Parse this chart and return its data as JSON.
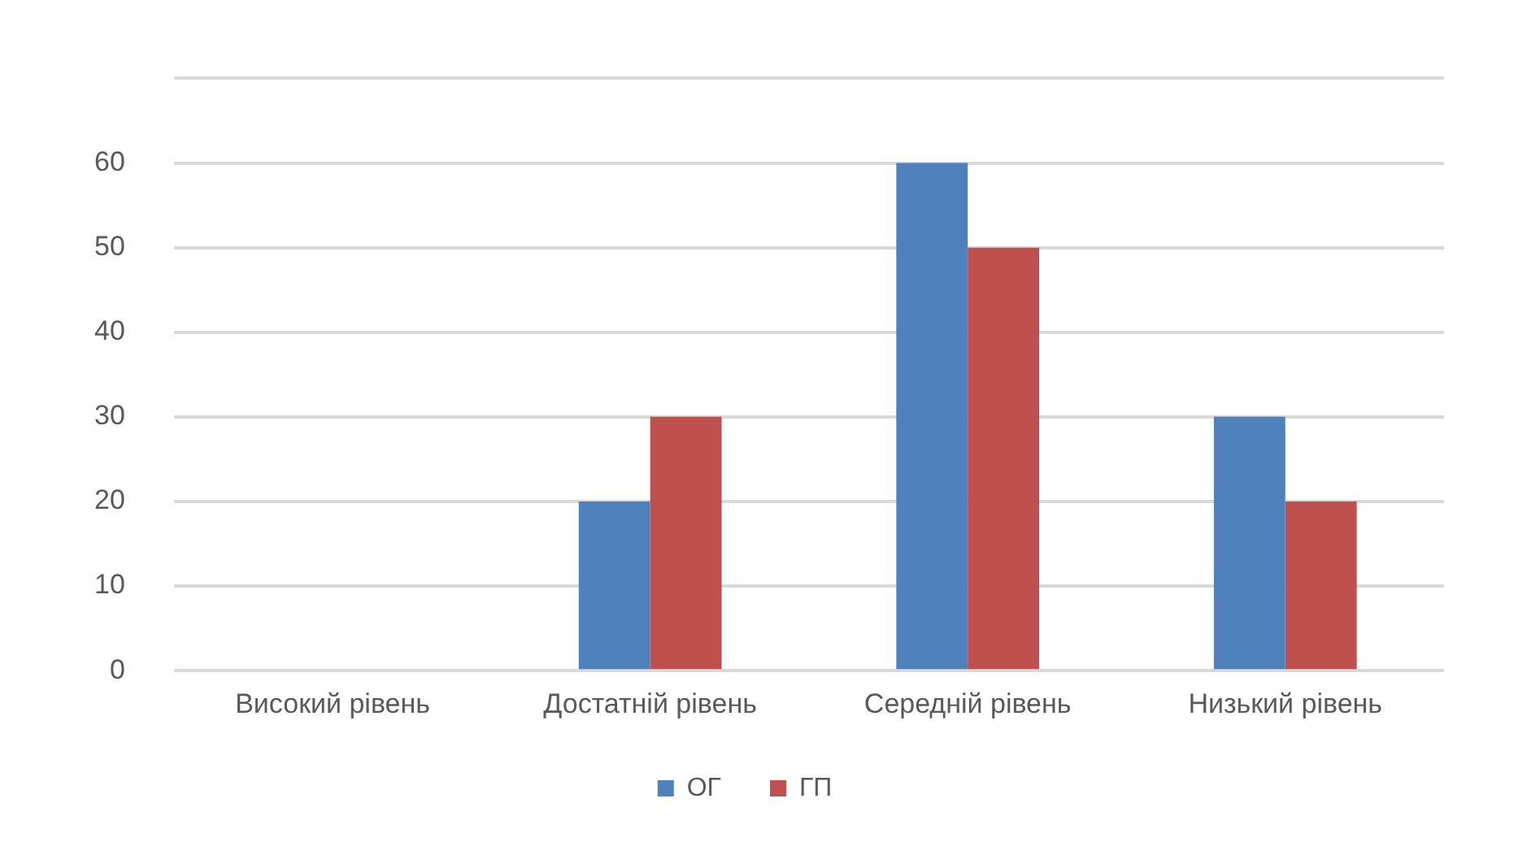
{
  "chart_data": {
    "type": "bar",
    "categories": [
      "Високий рівень",
      "Достатній рівень",
      "Середній рівень",
      "Низький рівень"
    ],
    "series": [
      {
        "name": "ОГ",
        "color": "#4f81bd",
        "values": [
          0,
          20,
          60,
          30
        ]
      },
      {
        "name": "ГП",
        "color": "#c0504d",
        "values": [
          0,
          30,
          50,
          20
        ]
      }
    ],
    "ylim": [
      0,
      70
    ],
    "yticks": [
      0,
      10,
      20,
      30,
      40,
      50,
      60,
      {
        "value": 70,
        "label": null
      }
    ],
    "grid": "y",
    "legend": "bottom"
  }
}
